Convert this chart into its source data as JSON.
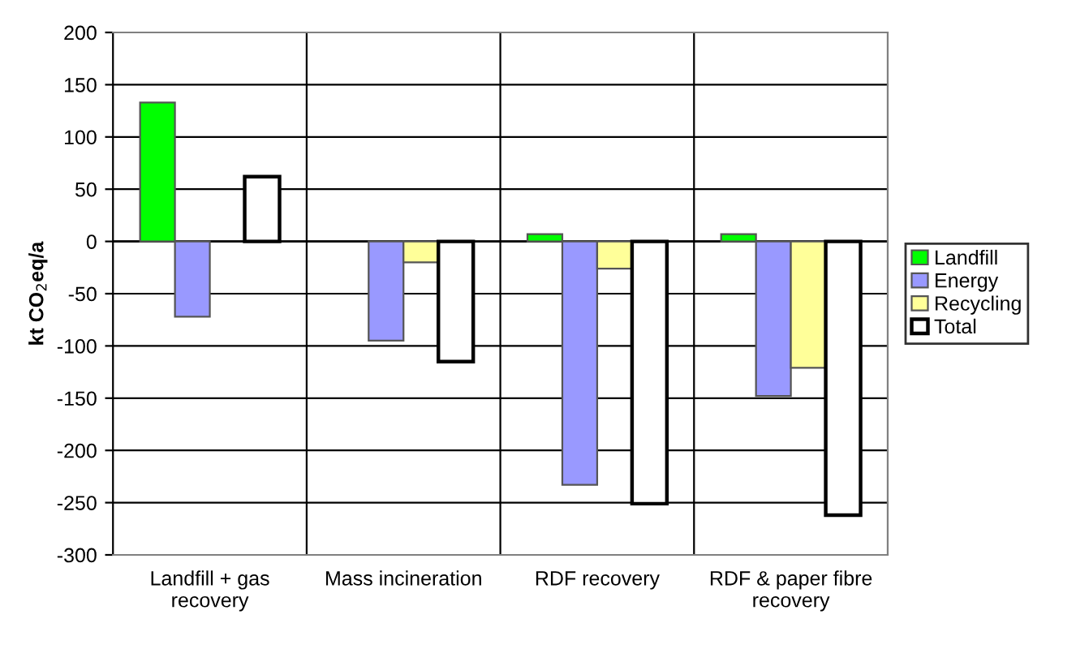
{
  "chart_data": {
    "type": "bar",
    "ylabel": "kt CO$_{2}$eq/a",
    "categories": [
      "Landfill + gas recovery",
      "Mass incineration",
      "RDF recovery",
      "RDF & paper fibre recovery"
    ],
    "series": [
      {
        "name": "Landfill",
        "color": "#00ff00",
        "values": [
          133,
          null,
          7,
          7
        ]
      },
      {
        "name": "Energy",
        "color": "#9999ff",
        "values": [
          -72,
          -95,
          -233,
          -148
        ]
      },
      {
        "name": "Recycling",
        "color": "#ffff99",
        "values": [
          null,
          -20,
          -26,
          -121
        ]
      },
      {
        "name": "Total",
        "color": "#ffffff",
        "values": [
          62,
          -115,
          -251,
          -262
        ]
      }
    ],
    "ylim": [
      -300,
      200
    ],
    "yticks": [
      -300,
      -250,
      -200,
      -150,
      -100,
      -50,
      0,
      50,
      100,
      150,
      200
    ],
    "grid": true,
    "legend": "right"
  }
}
